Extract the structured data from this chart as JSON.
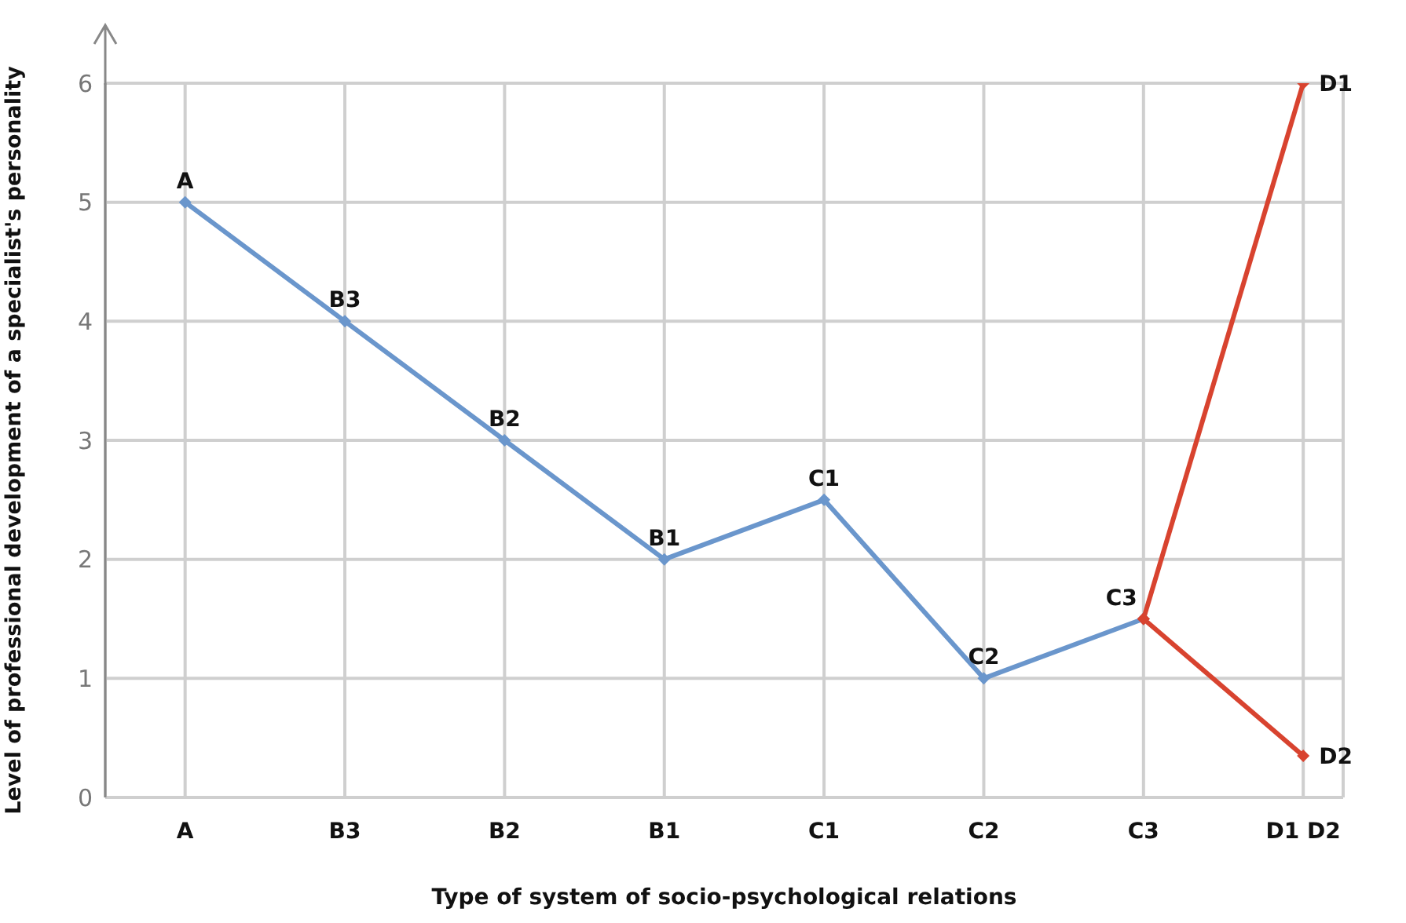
{
  "chart_data": {
    "type": "line",
    "xlabel": "Type of system of socio-psychological relations",
    "ylabel": "Level of professional development of a specialist's personality",
    "categories": [
      "A",
      "B3",
      "B2",
      "B1",
      "C1",
      "C2",
      "C3",
      "D1 D2"
    ],
    "series": [
      {
        "color": "#6a96cc",
        "values": [
          5,
          4,
          3,
          2,
          2.5,
          1,
          1.5,
          null
        ]
      },
      {
        "color": "#d8432f",
        "values": [
          null,
          null,
          null,
          null,
          null,
          null,
          1.5,
          6
        ]
      },
      {
        "color": "#d8432f",
        "values": [
          null,
          null,
          null,
          null,
          null,
          null,
          1.5,
          0.35
        ]
      }
    ],
    "ylim": [
      0,
      6
    ],
    "yticks": [
      0,
      1,
      2,
      3,
      4,
      5,
      6
    ],
    "grid": true,
    "marker": "diamond",
    "line_style": "solid",
    "annotations": [
      {
        "text": "A",
        "x": "A",
        "y": 5
      },
      {
        "text": "B3",
        "x": "B3",
        "y": 4
      },
      {
        "text": "B2",
        "x": "B2",
        "y": 3
      },
      {
        "text": "B1",
        "x": "B1",
        "y": 2
      },
      {
        "text": "C1",
        "x": "C1",
        "y": 2.5
      },
      {
        "text": "C2",
        "x": "C2",
        "y": 1
      },
      {
        "text": "C3",
        "x": "C3",
        "y": 1.5
      },
      {
        "text": "D1",
        "x": "D1 D2",
        "y": 6
      },
      {
        "text": "D2",
        "x": "D1 D2",
        "y": 0.35
      }
    ]
  }
}
